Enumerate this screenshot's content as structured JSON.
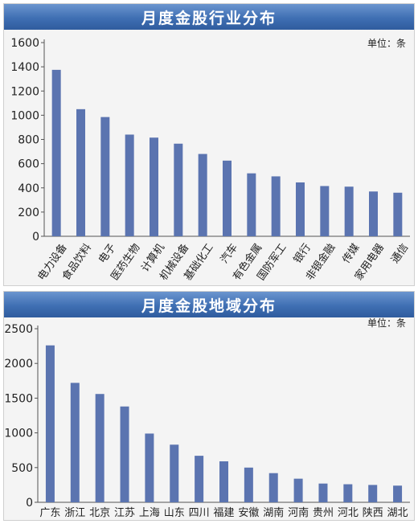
{
  "chart_data": [
    {
      "type": "bar",
      "title": "月度金股行业分布",
      "unit_label": "单位：条",
      "xlabel": "",
      "ylabel": "",
      "ylim": [
        0,
        1600
      ],
      "yticks": [
        0,
        200,
        400,
        600,
        800,
        1000,
        1200,
        1400,
        1600
      ],
      "grid": false,
      "bar_color": "#5b74b0",
      "categories": [
        "电力设备",
        "食品饮料",
        "电子",
        "医药生物",
        "计算机",
        "机械设备",
        "基础化工",
        "汽车",
        "有色金属",
        "国防军工",
        "银行",
        "非银金融",
        "传媒",
        "家用电器",
        "通信"
      ],
      "values": [
        1375,
        1050,
        985,
        840,
        815,
        765,
        680,
        625,
        520,
        495,
        445,
        415,
        410,
        370,
        360
      ]
    },
    {
      "type": "bar",
      "title": "月度金股地域分布",
      "unit_label": "单位：条",
      "xlabel": "",
      "ylabel": "",
      "ylim": [
        0,
        2500
      ],
      "yticks": [
        0,
        500,
        1000,
        1500,
        2000,
        2500
      ],
      "grid": false,
      "bar_color": "#5b74b0",
      "categories": [
        "广东",
        "浙江",
        "北京",
        "江苏",
        "上海",
        "山东",
        "四川",
        "福建",
        "安徽",
        "湖南",
        "河南",
        "贵州",
        "河北",
        "陕西",
        "湖北"
      ],
      "values": [
        2260,
        1720,
        1560,
        1380,
        990,
        830,
        670,
        590,
        500,
        420,
        340,
        270,
        260,
        250,
        240
      ]
    }
  ]
}
